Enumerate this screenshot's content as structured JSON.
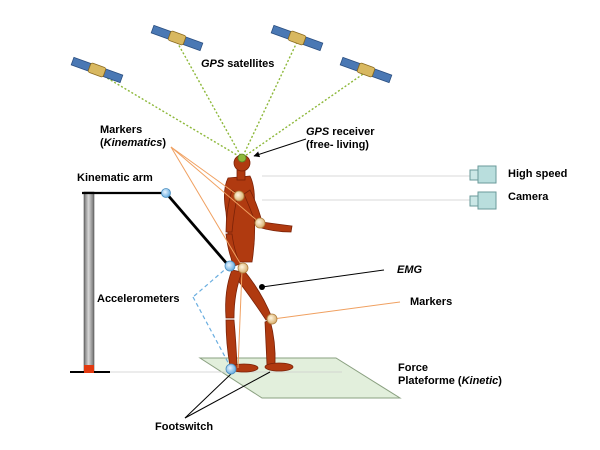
{
  "labels": {
    "gps_satellites": {
      "em": "GPS",
      "rest": " satellites"
    },
    "gps_receiver": {
      "em": "GPS",
      "rest": " receiver",
      "line2": "(free- living)"
    },
    "markers_kinematics": {
      "line1": "Markers",
      "open": "(",
      "em": "Kinematics",
      "close": ")"
    },
    "kinematic_arm": "Kinematic arm",
    "high_speed": "High speed",
    "camera": "Camera",
    "emg": "EMG",
    "markers": "Markers",
    "accelerometers": "Accelerometers",
    "force_platform": {
      "line1": "Force",
      "line2_pre": "Plateforme (",
      "em": "Kinetic",
      "line2_post": ")"
    },
    "footswitch": "Footswitch"
  },
  "colors": {
    "gps_link": "#8db83a",
    "marker_link": "#f0a060",
    "accelerometer_link": "#6aaee0",
    "figure": "#b03a10",
    "platform": "#e2efdc",
    "camera": "#b9dedd",
    "arm_pole": "#9a9a9a"
  },
  "icons": [
    "satellite-icon",
    "camera-icon",
    "human-figure",
    "force-plate",
    "kinematic-arm"
  ]
}
